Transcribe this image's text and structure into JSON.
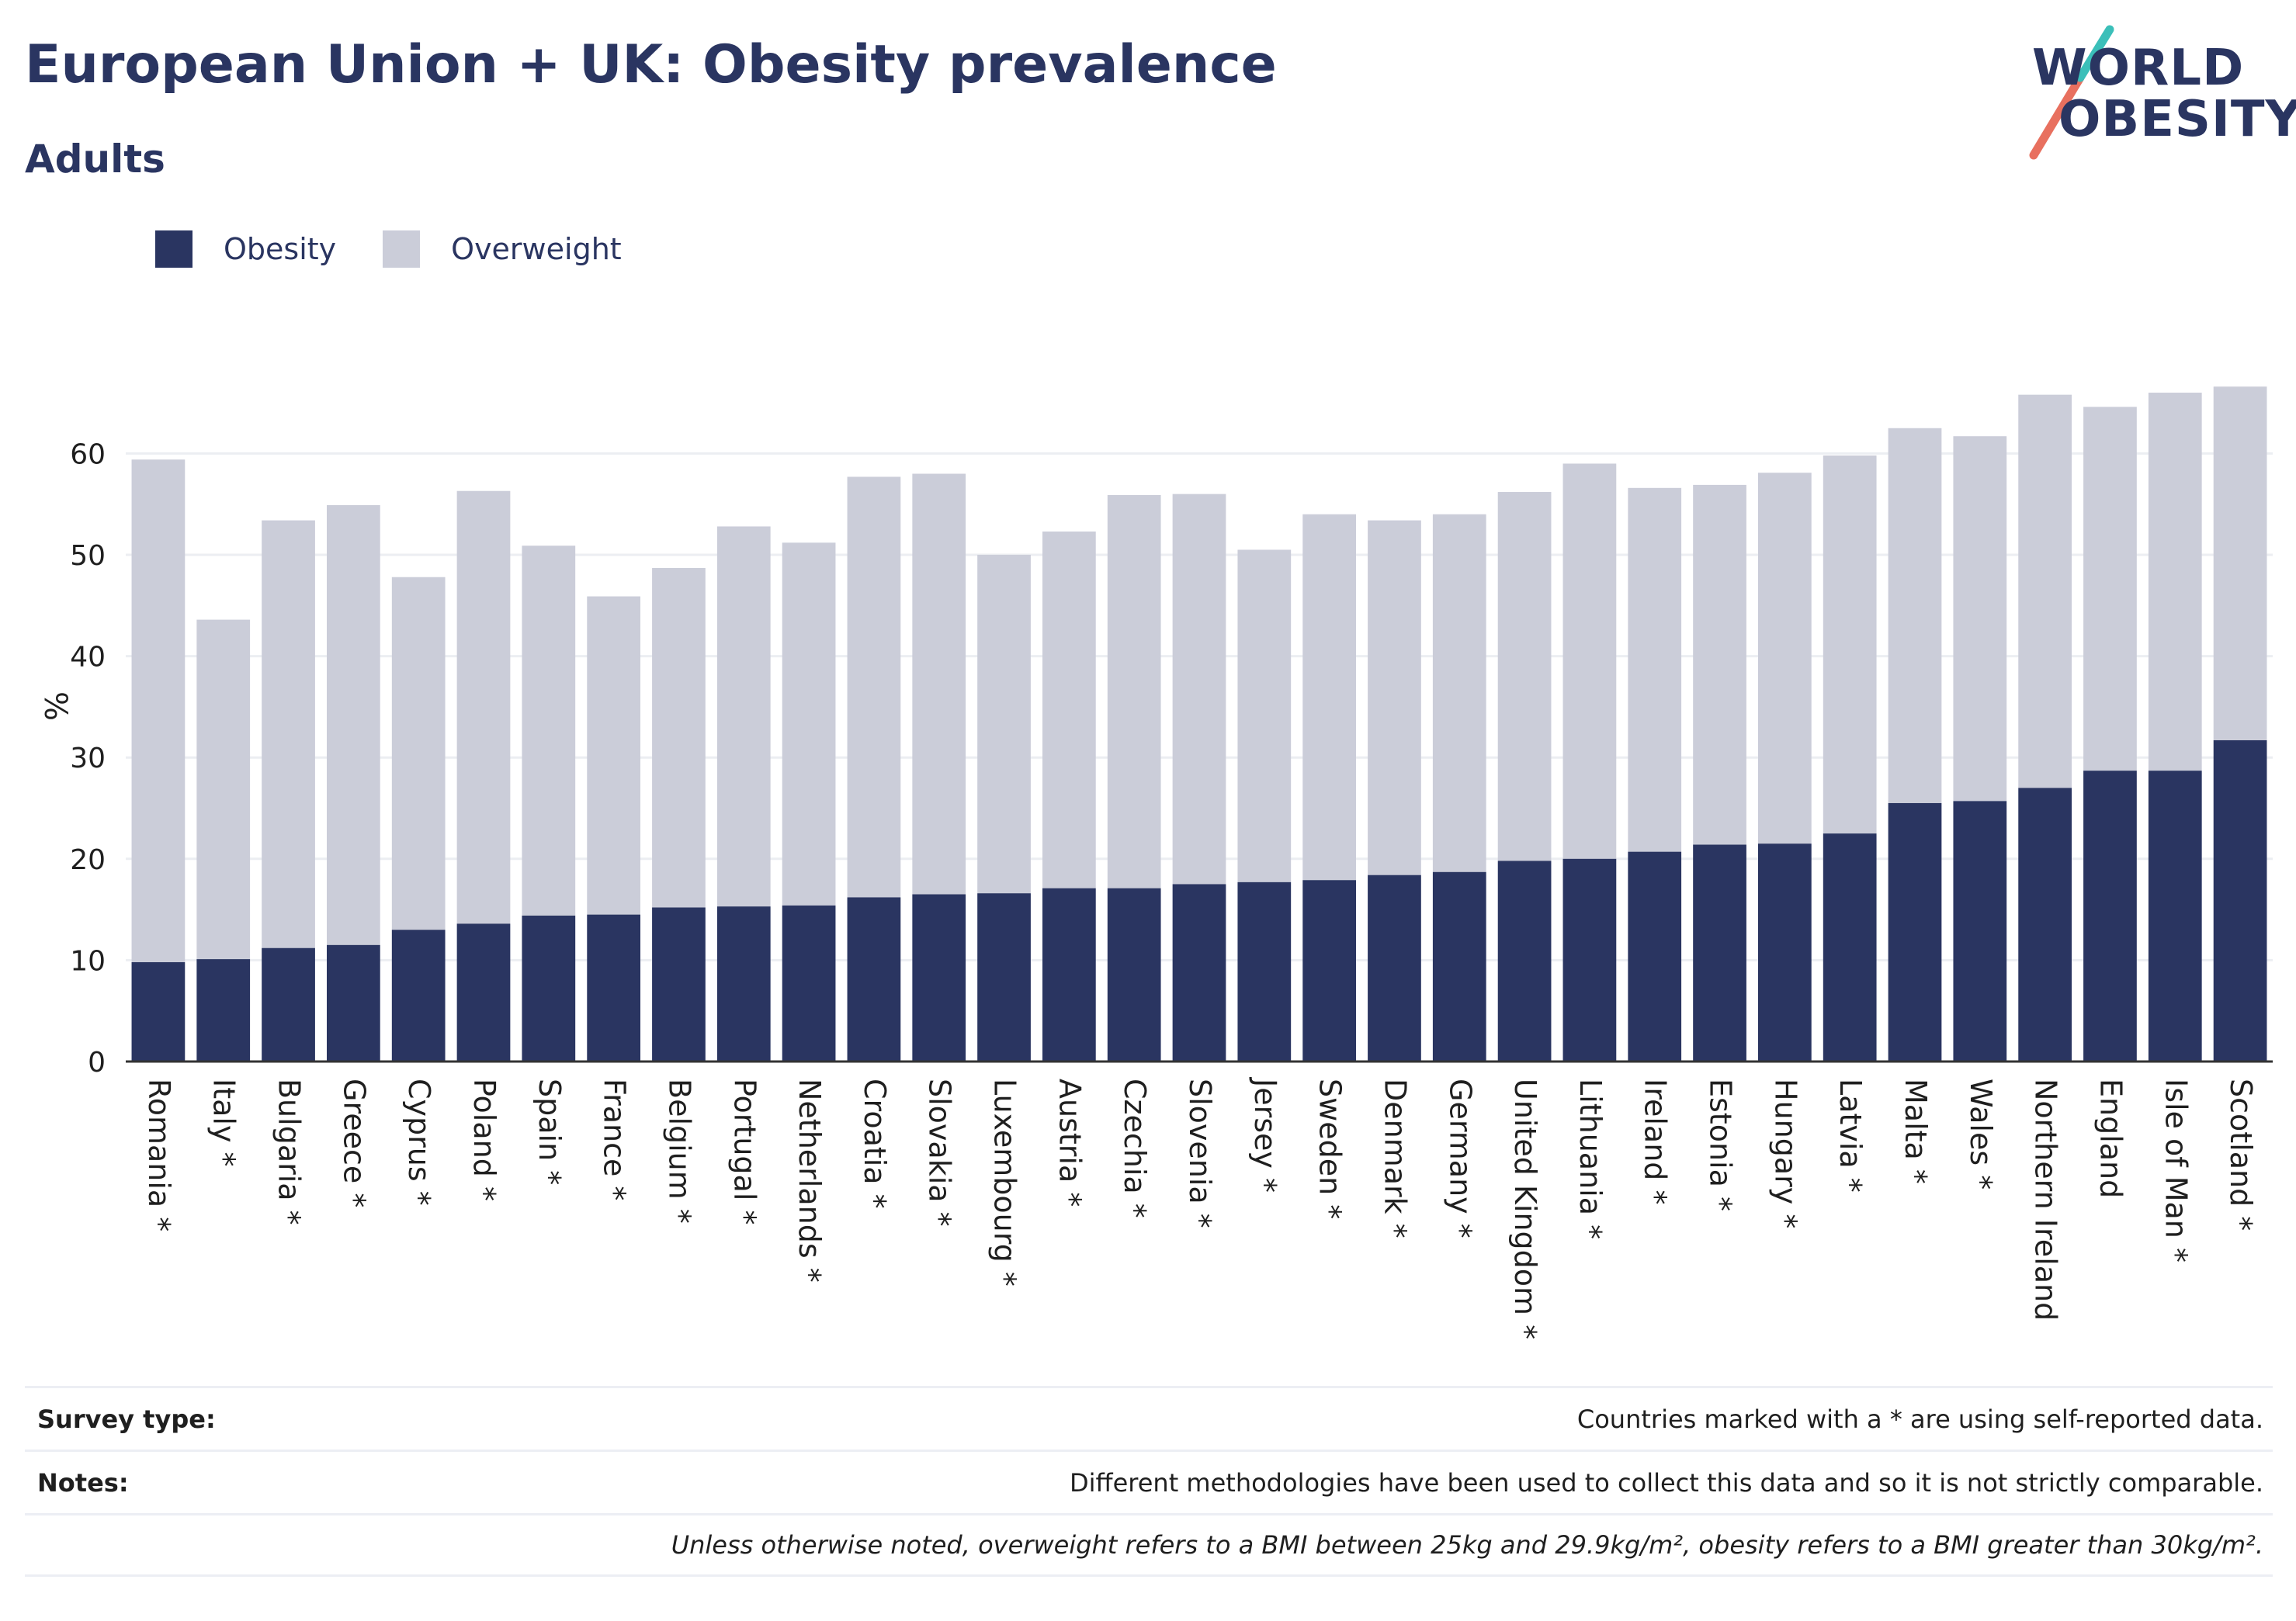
{
  "header": {
    "title": "European Union + UK: Obesity prevalence",
    "subtitle": "Adults"
  },
  "logo": {
    "line1": "WORLD",
    "line2": "OBESITY",
    "colors": [
      "#2a3561",
      "#e8705f",
      "#3bbfb9"
    ]
  },
  "legend": [
    {
      "name": "Obesity",
      "color": "#2a3561"
    },
    {
      "name": "Overweight",
      "color": "#cbcdd9"
    }
  ],
  "chart_data": {
    "type": "bar",
    "stacked": true,
    "ylabel": "%",
    "ylim": [
      0,
      70
    ],
    "yticks": [
      0,
      10,
      20,
      30,
      40,
      50,
      60
    ],
    "grid": true,
    "legend_position": "top-left",
    "categories": [
      "Romania *",
      "Italy *",
      "Bulgaria *",
      "Greece *",
      "Cyprus *",
      "Poland *",
      "Spain *",
      "France *",
      "Belgium *",
      "Portugal *",
      "Netherlands *",
      "Croatia *",
      "Slovakia *",
      "Luxembourg *",
      "Austria *",
      "Czechia *",
      "Slovenia *",
      "Jersey *",
      "Sweden *",
      "Denmark *",
      "Germany *",
      "United Kingdom *",
      "Lithuania *",
      "Ireland *",
      "Estonia *",
      "Hungary *",
      "Latvia *",
      "Malta *",
      "Wales *",
      "Northern Ireland",
      "England",
      "Isle of Man *",
      "Scotland *"
    ],
    "series": [
      {
        "name": "Obesity",
        "color": "#2a3561",
        "values": [
          9.8,
          10.1,
          11.2,
          11.5,
          13.0,
          13.6,
          14.4,
          14.5,
          15.2,
          15.3,
          15.4,
          16.2,
          16.5,
          16.6,
          17.1,
          17.1,
          17.5,
          17.7,
          17.9,
          18.4,
          18.7,
          19.8,
          20.0,
          20.7,
          21.4,
          21.5,
          22.5,
          25.5,
          25.7,
          27.0,
          28.7,
          28.7,
          31.7
        ]
      },
      {
        "name": "Overweight",
        "color": "#cbcdd9",
        "values": [
          49.6,
          33.5,
          42.2,
          43.4,
          34.8,
          42.7,
          36.5,
          31.4,
          33.5,
          37.5,
          35.8,
          41.5,
          41.5,
          33.4,
          35.2,
          38.8,
          38.5,
          32.8,
          36.1,
          35.0,
          35.3,
          36.4,
          39.0,
          35.9,
          35.5,
          36.6,
          37.3,
          37.0,
          36.0,
          38.8,
          35.9,
          37.3,
          34.9
        ]
      }
    ]
  },
  "footer": {
    "rows": [
      {
        "key": "Survey type:",
        "value": "Countries marked with a * are using self-reported data."
      },
      {
        "key": "Notes:",
        "value": "Different methodologies have been used to collect this data and so it is not strictly comparable."
      },
      {
        "key": "",
        "value": "Unless otherwise noted, overweight refers to a BMI between 25kg and 29.9kg/m², obesity refers to a BMI greater than 30kg/m²."
      }
    ]
  }
}
